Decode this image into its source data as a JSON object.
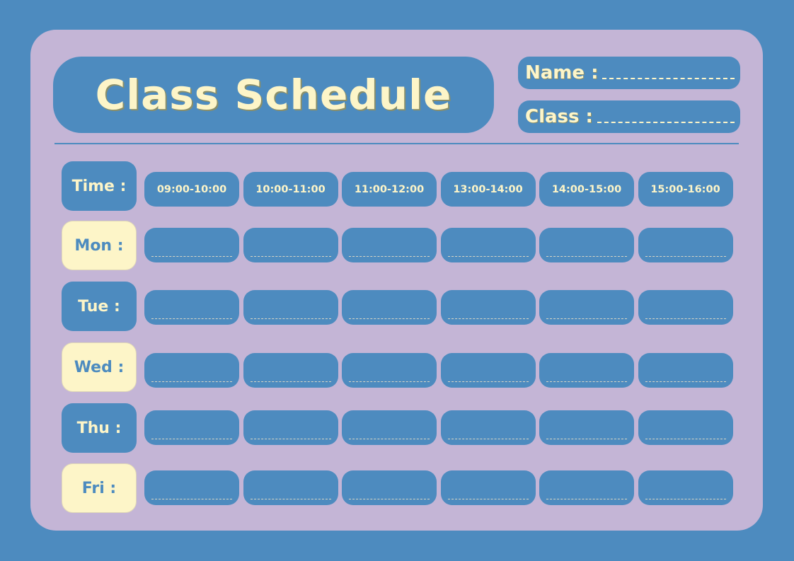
{
  "title": "Class Schedule",
  "fields": {
    "name_label": "Name :",
    "class_label": "Class :"
  },
  "time_label": "Time :",
  "times": [
    "09:00-10:00",
    "10:00-11:00",
    "11:00-12:00",
    "13:00-14:00",
    "14:00-15:00",
    "15:00-16:00"
  ],
  "days": [
    "Mon :",
    "Tue :",
    "Wed :",
    "Thu :",
    "Fri :"
  ],
  "colors": {
    "background": "#4d8bbf",
    "card": "#c4b5d6",
    "cream": "#fdf5c8"
  }
}
